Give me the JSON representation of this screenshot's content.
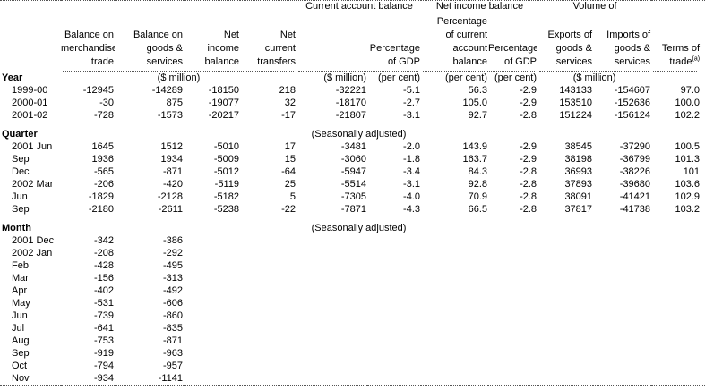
{
  "groups": {
    "current_account": "Current account balance",
    "net_income": "Net income balance",
    "volume": "Volume of"
  },
  "columns": {
    "balance_merchandise": "Balance on\nmerchandise\ntrade",
    "balance_goods_services": "Balance on\ngoods &\nservices",
    "net_income_balance": "Net\nincome\nbalance",
    "net_current_transfers": "Net\ncurrent\ntransfers",
    "pct_gdp_current_account": "Percentage\nof GDP",
    "pct_of_current_account": "Percentage\nof current\naccount\nbalance",
    "pct_gdp_net_income": "Percentage\nof GDP",
    "exports": "Exports of\ngoods &\nservices",
    "imports": "Imports of\ngoods &\nservices",
    "terms_of_trade": "Terms of\ntrade",
    "terms_of_trade_footnote": "(a)"
  },
  "units": {
    "group1": "($ million)",
    "cab": "($ million)",
    "pct1": "(per cent)",
    "pct2": "(per cent)",
    "pct3": "(per cent)",
    "volume": "($ million)"
  },
  "sections": [
    {
      "label": "Year",
      "note": "",
      "rows": [
        [
          "1999-00",
          "-12945",
          "-14289",
          "-18150",
          "218",
          "-32221",
          "-5.1",
          "56.3",
          "-2.9",
          "143133",
          "-154607",
          "97.0"
        ],
        [
          "2000-01",
          "-30",
          "875",
          "-19077",
          "32",
          "-18170",
          "-2.7",
          "105.0",
          "-2.9",
          "153510",
          "-152636",
          "100.0"
        ],
        [
          "2001-02",
          "-728",
          "-1573",
          "-20217",
          "-17",
          "-21807",
          "-3.1",
          "92.7",
          "-2.8",
          "151224",
          "-156124",
          "102.2"
        ]
      ]
    },
    {
      "label": "Quarter",
      "note": "(Seasonally adjusted)",
      "rows": [
        [
          "2001 Jun",
          "1645",
          "1512",
          "-5010",
          "17",
          "-3481",
          "-2.0",
          "143.9",
          "-2.9",
          "38545",
          "-37290",
          "100.5"
        ],
        [
          "Sep",
          "1936",
          "1934",
          "-5009",
          "15",
          "-3060",
          "-1.8",
          "163.7",
          "-2.9",
          "38198",
          "-36799",
          "101.3"
        ],
        [
          "Dec",
          "-565",
          "-871",
          "-5012",
          "-64",
          "-5947",
          "-3.4",
          "84.3",
          "-2.8",
          "36993",
          "-38226",
          "101"
        ],
        [
          "2002 Mar",
          "-206",
          "-420",
          "-5119",
          "25",
          "-5514",
          "-3.1",
          "92.8",
          "-2.8",
          "37893",
          "-39680",
          "103.6"
        ],
        [
          "Jun",
          "-1829",
          "-2128",
          "-5182",
          "5",
          "-7305",
          "-4.0",
          "70.9",
          "-2.8",
          "38091",
          "-41421",
          "102.9"
        ],
        [
          "Sep",
          "-2180",
          "-2611",
          "-5238",
          "-22",
          "-7871",
          "-4.3",
          "66.5",
          "-2.8",
          "37817",
          "-41738",
          "103.2"
        ]
      ]
    },
    {
      "label": "Month",
      "note": "(Seasonally adjusted)",
      "rows": [
        [
          "2001 Dec",
          "-342",
          "-386"
        ],
        [
          "2002 Jan",
          "-208",
          "-292"
        ],
        [
          "Feb",
          "-428",
          "-495"
        ],
        [
          "Mar",
          "-156",
          "-313"
        ],
        [
          "Apr",
          "-402",
          "-492"
        ],
        [
          "May",
          "-531",
          "-606"
        ],
        [
          "Jun",
          "-739",
          "-860"
        ],
        [
          "Jul",
          "-641",
          "-835"
        ],
        [
          "Aug",
          "-753",
          "-871"
        ],
        [
          "Sep",
          "-919",
          "-963"
        ],
        [
          "Oct",
          "-794",
          "-957"
        ],
        [
          "Nov",
          "-934",
          "-1141"
        ]
      ]
    }
  ]
}
